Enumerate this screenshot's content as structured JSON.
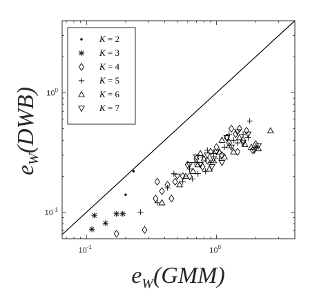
{
  "chart_data": {
    "type": "scatter",
    "x_scale": "log",
    "y_scale": "log",
    "xlim": [
      0.065,
      4.0
    ],
    "ylim": [
      0.06,
      4.0
    ],
    "x_ticks": [
      {
        "value": 0.1,
        "base": "10",
        "exp": "-1"
      },
      {
        "value": 1.0,
        "base": "10",
        "exp": "0"
      }
    ],
    "y_ticks": [
      {
        "value": 0.1,
        "base": "10",
        "exp": "-1"
      },
      {
        "value": 1.0,
        "base": "10",
        "exp": "0"
      }
    ],
    "xlabel": {
      "main": "e",
      "sub": "W",
      "arg": "(GMM)"
    },
    "ylabel": {
      "main": "e",
      "sub": "W",
      "arg": "(DWB)"
    },
    "reference_line": "y = x",
    "legend_position": "top-left",
    "grid": false,
    "series": [
      {
        "name": "K = 2",
        "label_left": "K",
        "label_right": "2",
        "marker": "dot",
        "points": [
          [
            0.23,
            0.22
          ],
          [
            0.2,
            0.14
          ]
        ]
      },
      {
        "name": "K = 3",
        "label_left": "K",
        "label_right": "3",
        "marker": "asterisk",
        "points": [
          [
            0.11,
            0.072
          ],
          [
            0.115,
            0.094
          ],
          [
            0.14,
            0.081
          ],
          [
            0.17,
            0.097
          ],
          [
            0.19,
            0.097
          ]
        ]
      },
      {
        "name": "K = 4",
        "label_left": "K",
        "label_right": "4",
        "marker": "diamond",
        "points": [
          [
            0.17,
            0.066
          ],
          [
            0.28,
            0.071
          ],
          [
            0.34,
            0.13
          ],
          [
            0.35,
            0.18
          ],
          [
            0.38,
            0.15
          ],
          [
            0.42,
            0.17
          ],
          [
            0.45,
            0.13
          ],
          [
            0.48,
            0.18
          ],
          [
            0.55,
            0.2
          ],
          [
            0.6,
            0.25
          ],
          [
            0.62,
            0.2
          ],
          [
            0.7,
            0.28
          ],
          [
            0.78,
            0.24
          ],
          [
            0.85,
            0.27
          ],
          [
            0.9,
            0.32
          ],
          [
            1.0,
            0.35
          ],
          [
            1.1,
            0.3
          ],
          [
            1.2,
            0.42
          ],
          [
            1.3,
            0.5
          ],
          [
            1.4,
            0.45
          ],
          [
            1.5,
            0.5
          ],
          [
            1.6,
            0.4
          ],
          [
            1.7,
            0.48
          ],
          [
            1.9,
            0.33
          ],
          [
            2.0,
            0.37
          ],
          [
            1.25,
            0.38
          ],
          [
            1.45,
            0.32
          ]
        ]
      },
      {
        "name": "K = 5",
        "label_left": "K",
        "label_right": "5",
        "marker": "plus",
        "points": [
          [
            0.26,
            0.1
          ],
          [
            0.35,
            0.12
          ],
          [
            0.42,
            0.16
          ],
          [
            0.47,
            0.21
          ],
          [
            0.55,
            0.18
          ],
          [
            0.62,
            0.23
          ],
          [
            0.68,
            0.26
          ],
          [
            0.72,
            0.21
          ],
          [
            0.78,
            0.29
          ],
          [
            0.82,
            0.22
          ],
          [
            0.9,
            0.26
          ],
          [
            0.95,
            0.31
          ],
          [
            1.05,
            0.28
          ],
          [
            1.15,
            0.35
          ],
          [
            1.25,
            0.45
          ],
          [
            1.35,
            0.4
          ],
          [
            1.45,
            0.38
          ],
          [
            1.6,
            0.45
          ],
          [
            1.75,
            0.42
          ],
          [
            1.8,
            0.58
          ],
          [
            2.0,
            0.35
          ],
          [
            0.65,
            0.19
          ],
          [
            0.85,
            0.33
          ]
        ]
      },
      {
        "name": "K = 6",
        "label_left": "K",
        "label_right": "6",
        "marker": "triangle-up",
        "points": [
          [
            0.38,
            0.12
          ],
          [
            0.52,
            0.17
          ],
          [
            0.58,
            0.2
          ],
          [
            0.66,
            0.22
          ],
          [
            0.72,
            0.25
          ],
          [
            0.8,
            0.28
          ],
          [
            0.88,
            0.23
          ],
          [
            0.95,
            0.27
          ],
          [
            1.05,
            0.32
          ],
          [
            1.15,
            0.29
          ],
          [
            1.25,
            0.36
          ],
          [
            1.35,
            0.32
          ],
          [
            1.5,
            0.42
          ],
          [
            1.65,
            0.37
          ],
          [
            1.85,
            0.35
          ],
          [
            2.1,
            0.34
          ],
          [
            2.6,
            0.48
          ],
          [
            0.75,
            0.31
          ],
          [
            1.1,
            0.4
          ]
        ]
      },
      {
        "name": "K = 7",
        "label_left": "K",
        "label_right": "7",
        "marker": "triangle-down",
        "points": [
          [
            0.5,
            0.2
          ],
          [
            0.62,
            0.25
          ],
          [
            0.75,
            0.25
          ],
          [
            0.85,
            0.3
          ],
          [
            0.92,
            0.24
          ],
          [
            1.0,
            0.32
          ],
          [
            1.1,
            0.26
          ],
          [
            1.2,
            0.42
          ],
          [
            1.3,
            0.35
          ],
          [
            1.45,
            0.47
          ],
          [
            1.6,
            0.38
          ],
          [
            1.75,
            0.45
          ],
          [
            1.95,
            0.33
          ],
          [
            2.1,
            0.36
          ],
          [
            0.7,
            0.29
          ],
          [
            0.95,
            0.28
          ]
        ]
      }
    ]
  }
}
